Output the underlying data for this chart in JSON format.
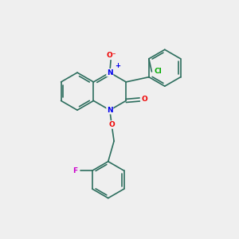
{
  "bg_color": "#efefef",
  "bond_color": "#2d6e5e",
  "bond_width": 1.2,
  "atom_colors": {
    "N": "#0000ee",
    "O": "#ee0000",
    "Cl": "#00aa00",
    "F": "#cc00cc"
  },
  "figsize": [
    3.0,
    3.0
  ],
  "dpi": 100,
  "xlim": [
    0,
    10
  ],
  "ylim": [
    0,
    10
  ]
}
